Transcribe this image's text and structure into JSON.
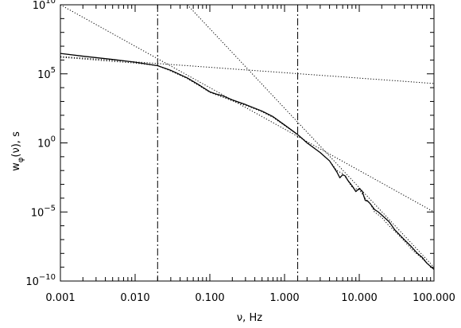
{
  "chart_data": {
    "type": "line",
    "title": "",
    "xlabel": "ν, Hz",
    "ylabel": {
      "main": "w",
      "sub": "φ",
      "tail": "(ν), s"
    },
    "xscale": "log",
    "yscale": "log",
    "xlim": [
      0.001,
      100
    ],
    "ylim": [
      1e-10,
      10000000000.0
    ],
    "grid": false,
    "legend": "none",
    "x_ticks": [
      {
        "value": 0.001,
        "label": "0.001"
      },
      {
        "value": 0.01,
        "label": "0.010"
      },
      {
        "value": 0.1,
        "label": "0.100"
      },
      {
        "value": 1,
        "label": "1.000"
      },
      {
        "value": 10,
        "label": "10.000"
      },
      {
        "value": 100,
        "label": "100.000"
      }
    ],
    "y_ticks": [
      {
        "value": 1e-10,
        "base": "10",
        "exp": "−10"
      },
      {
        "value": 1e-05,
        "base": "10",
        "exp": "−5"
      },
      {
        "value": 1,
        "base": "10",
        "exp": "0"
      },
      {
        "value": 100000.0,
        "base": "10",
        "exp": "5"
      },
      {
        "value": 10000000000.0,
        "base": "10",
        "exp": "10"
      }
    ],
    "vertical_lines": [
      {
        "x": 0.02,
        "style": "dash-dot"
      },
      {
        "x": 1.5,
        "style": "dash-dot"
      }
    ],
    "series": [
      {
        "style": "solid",
        "x": [
          0.001,
          0.002,
          0.005,
          0.01,
          0.02,
          0.03,
          0.05,
          0.07,
          0.1,
          0.12,
          0.15,
          0.2,
          0.3,
          0.5,
          0.7,
          1.0,
          1.5,
          2,
          3,
          4,
          5,
          5.5,
          6,
          6.5,
          7,
          8,
          9,
          10,
          11,
          12,
          13,
          14,
          16,
          18,
          20,
          25,
          30,
          40,
          50,
          60,
          70,
          80,
          100
        ],
        "y": [
          3000000.0,
          1900000.0,
          1100000.0,
          700000.0,
          390000.0,
          180000.0,
          50000.0,
          17000.0,
          5000.0,
          3500.0,
          2500.0,
          1300.0,
          600,
          200,
          80,
          20,
          4,
          1,
          0.2,
          0.05,
          0.008,
          0.003,
          0.005,
          0.004,
          0.002,
          0.0008,
          0.0003,
          0.0005,
          0.0003,
          7e-05,
          6e-05,
          4e-05,
          1.5e-05,
          1e-05,
          6e-06,
          2e-06,
          5e-07,
          1e-07,
          3e-08,
          1e-08,
          5e-09,
          2e-09,
          7e-10
        ]
      },
      {
        "style": "dotted",
        "x": [
          0.001,
          0.002,
          0.005,
          0.01,
          0.02,
          0.03,
          0.05,
          0.07,
          0.1,
          0.15,
          0.2,
          0.3,
          0.5,
          0.7,
          1.0,
          1.5,
          2,
          3,
          4,
          5,
          6,
          7,
          8,
          10,
          12,
          14,
          16,
          20,
          25,
          30,
          40,
          50,
          70,
          100
        ],
        "y": [
          1600000.0,
          1200000.0,
          800000.0,
          600000.0,
          390000.0,
          160000.0,
          45000.0,
          15000.0,
          4500.0,
          2000.0,
          1100.0,
          520,
          180,
          70,
          18,
          4,
          1.1,
          0.2,
          0.05,
          0.01,
          0.006,
          0.002,
          0.0006,
          0.0004,
          0.0001,
          4e-05,
          1e-05,
          4e-06,
          1e-06,
          4e-07,
          8e-08,
          2e-08,
          4e-09,
          7e-10
        ]
      },
      {
        "style": "dotted",
        "x": [
          0.001,
          100
        ],
        "y": [
          10000000000.0,
          1e-05
        ]
      },
      {
        "style": "dotted",
        "x": [
          0.001,
          100
        ],
        "y": [
          1800000.0,
          20000.0
        ]
      },
      {
        "style": "dotted",
        "x": [
          0.05,
          100
        ],
        "y": [
          10000000000.0,
          1e-09
        ]
      }
    ]
  }
}
